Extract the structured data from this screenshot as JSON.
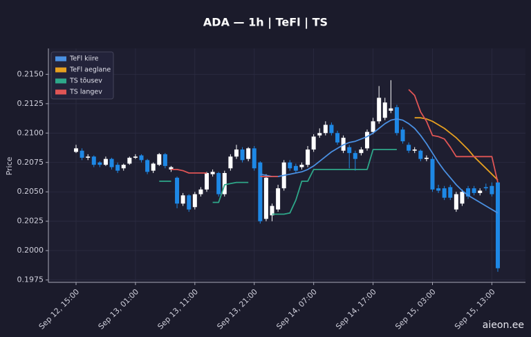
{
  "chart_data": {
    "type": "candlestick",
    "title": "ADA — 1h  |  TeFl  |  TS",
    "ylabel": "Price",
    "watermark": "aieon.ee",
    "x": [
      "Sep 12, 15:00",
      "Sep 12, 16:00",
      "Sep 12, 17:00",
      "Sep 12, 18:00",
      "Sep 12, 19:00",
      "Sep 12, 20:00",
      "Sep 12, 21:00",
      "Sep 12, 22:00",
      "Sep 12, 23:00",
      "Sep 13, 00:00",
      "Sep 13, 01:00",
      "Sep 13, 02:00",
      "Sep 13, 03:00",
      "Sep 13, 04:00",
      "Sep 13, 05:00",
      "Sep 13, 06:00",
      "Sep 13, 07:00",
      "Sep 13, 08:00",
      "Sep 13, 09:00",
      "Sep 13, 10:00",
      "Sep 13, 11:00",
      "Sep 13, 12:00",
      "Sep 13, 13:00",
      "Sep 13, 14:00",
      "Sep 13, 15:00",
      "Sep 13, 16:00",
      "Sep 13, 17:00",
      "Sep 13, 18:00",
      "Sep 13, 19:00",
      "Sep 13, 20:00",
      "Sep 13, 21:00",
      "Sep 13, 22:00",
      "Sep 13, 23:00",
      "Sep 14, 00:00",
      "Sep 14, 01:00",
      "Sep 14, 02:00",
      "Sep 14, 03:00",
      "Sep 14, 04:00",
      "Sep 14, 05:00",
      "Sep 14, 06:00",
      "Sep 14, 07:00",
      "Sep 14, 08:00",
      "Sep 14, 09:00",
      "Sep 14, 10:00",
      "Sep 14, 11:00",
      "Sep 14, 12:00",
      "Sep 14, 13:00",
      "Sep 14, 14:00",
      "Sep 14, 15:00",
      "Sep 14, 16:00",
      "Sep 14, 17:00",
      "Sep 14, 18:00",
      "Sep 14, 19:00",
      "Sep 14, 20:00",
      "Sep 14, 21:00",
      "Sep 14, 22:00",
      "Sep 14, 23:00",
      "Sep 15, 00:00",
      "Sep 15, 01:00",
      "Sep 15, 02:00",
      "Sep 15, 03:00",
      "Sep 15, 04:00",
      "Sep 15, 05:00",
      "Sep 15, 06:00",
      "Sep 15, 07:00",
      "Sep 15, 08:00",
      "Sep 15, 09:00",
      "Sep 15, 10:00",
      "Sep 15, 11:00",
      "Sep 15, 12:00",
      "Sep 15, 13:00",
      "Sep 15, 14:00"
    ],
    "open": [
      0.2084,
      0.2085,
      0.2079,
      0.208,
      0.2075,
      0.2073,
      0.2078,
      0.2073,
      0.207,
      0.2074,
      0.2079,
      0.2081,
      0.2077,
      0.2068,
      0.2073,
      0.2082,
      0.2069,
      0.2062,
      0.204,
      0.2047,
      0.2037,
      0.2048,
      0.2052,
      0.2065,
      0.2066,
      0.2048,
      0.207,
      0.208,
      0.2086,
      0.2078,
      0.2087,
      0.2075,
      0.2027,
      0.203,
      0.2035,
      0.2053,
      0.2075,
      0.2072,
      0.2071,
      0.2073,
      0.2086,
      0.2098,
      0.21,
      0.2107,
      0.21,
      0.2085,
      0.2088,
      0.2083,
      0.2083,
      0.2087,
      0.2101,
      0.211,
      0.2113,
      0.2119,
      0.2122,
      0.2103,
      0.209,
      0.2085,
      0.2085,
      0.2078,
      0.2078,
      0.2053,
      0.2053,
      0.2054,
      0.2035,
      0.204,
      0.2053,
      0.2053,
      0.2049,
      0.2054,
      0.2055,
      0.2058
    ],
    "high": [
      0.209,
      0.2087,
      0.2082,
      0.2081,
      0.2076,
      0.208,
      0.2079,
      0.2075,
      0.2074,
      0.208,
      0.2082,
      0.2082,
      0.2078,
      0.2075,
      0.2083,
      0.2083,
      0.2072,
      0.2063,
      0.2049,
      0.2048,
      0.205,
      0.2054,
      0.2067,
      0.2069,
      0.2067,
      0.2068,
      0.2082,
      0.209,
      0.2088,
      0.2088,
      0.2089,
      0.2076,
      0.2065,
      0.204,
      0.2056,
      0.2077,
      0.2077,
      0.2074,
      0.2075,
      0.2089,
      0.2099,
      0.2104,
      0.211,
      0.2109,
      0.2102,
      0.2098,
      0.209,
      0.2085,
      0.2088,
      0.2103,
      0.2113,
      0.214,
      0.213,
      0.2145,
      0.2124,
      0.2105,
      0.2092,
      0.2088,
      0.2086,
      0.2081,
      0.208,
      0.2056,
      0.2055,
      0.2056,
      0.205,
      0.2052,
      0.2055,
      0.2055,
      0.2053,
      0.2057,
      0.2058,
      0.2059
    ],
    "low": [
      0.2083,
      0.2077,
      0.2077,
      0.2071,
      0.2071,
      0.2072,
      0.2069,
      0.2066,
      0.2068,
      0.2073,
      0.2078,
      0.2075,
      0.2065,
      0.2066,
      0.2072,
      0.207,
      0.2067,
      0.2036,
      0.2038,
      0.2033,
      0.2035,
      0.2046,
      0.205,
      0.2063,
      0.2046,
      0.2046,
      0.2068,
      0.2078,
      0.2075,
      0.2076,
      0.2068,
      0.2023,
      0.2025,
      0.2025,
      0.2033,
      0.2051,
      0.2068,
      0.2066,
      0.2069,
      0.2071,
      0.2084,
      0.2096,
      0.2098,
      0.2098,
      0.209,
      0.2083,
      0.207,
      0.2068,
      0.2081,
      0.2085,
      0.2099,
      0.2108,
      0.2111,
      0.2117,
      0.2098,
      0.2091,
      0.2083,
      0.2083,
      0.2076,
      0.2076,
      0.205,
      0.2049,
      0.2043,
      0.2043,
      0.2033,
      0.2038,
      0.2044,
      0.2047,
      0.2047,
      0.2051,
      0.2046,
      0.1982
    ],
    "close": [
      0.2087,
      0.2079,
      0.208,
      0.2073,
      0.2073,
      0.2078,
      0.2071,
      0.2068,
      0.2073,
      0.2079,
      0.208,
      0.2077,
      0.2067,
      0.2074,
      0.2082,
      0.2072,
      0.2071,
      0.204,
      0.2047,
      0.2035,
      0.2048,
      0.2052,
      0.2066,
      0.2067,
      0.2048,
      0.2066,
      0.208,
      0.2086,
      0.2077,
      0.2087,
      0.207,
      0.2025,
      0.2062,
      0.2038,
      0.2053,
      0.2075,
      0.207,
      0.2068,
      0.2073,
      0.2086,
      0.2097,
      0.21,
      0.2107,
      0.21,
      0.2092,
      0.2096,
      0.2083,
      0.2078,
      0.2086,
      0.2101,
      0.211,
      0.213,
      0.2126,
      0.2121,
      0.21,
      0.2093,
      0.2085,
      0.2086,
      0.2078,
      0.2079,
      0.2052,
      0.2051,
      0.2045,
      0.2045,
      0.2048,
      0.205,
      0.2046,
      0.2049,
      0.2051,
      0.2053,
      0.2048,
      0.1985
    ],
    "up_color": "#ffffff",
    "down_color": "#1e88e5",
    "series": [
      {
        "name": "TeFl kiire",
        "color": "#4a90e2",
        "values": [
          null,
          null,
          null,
          null,
          null,
          null,
          null,
          null,
          null,
          null,
          null,
          null,
          null,
          null,
          null,
          null,
          null,
          null,
          null,
          null,
          null,
          null,
          null,
          null,
          null,
          null,
          null,
          null,
          null,
          null,
          null,
          0.2065,
          0.2064,
          0.2063,
          0.2063,
          0.2064,
          0.2065,
          0.2066,
          0.2067,
          0.2069,
          0.2072,
          0.2076,
          0.208,
          0.2084,
          0.2087,
          0.209,
          0.2092,
          0.2093,
          0.2095,
          0.2097,
          0.21,
          0.2104,
          0.2108,
          0.2111,
          0.2112,
          0.2111,
          0.2108,
          0.2104,
          0.2098,
          0.2091,
          0.2083,
          0.2075,
          0.2068,
          0.2062,
          0.2056,
          0.2051,
          0.2047,
          0.2044,
          0.2041,
          0.2038,
          0.2035,
          0.2032
        ]
      },
      {
        "name": "TeFl aeglane",
        "color": "#e6a020",
        "values": [
          null,
          null,
          null,
          null,
          null,
          null,
          null,
          null,
          null,
          null,
          null,
          null,
          null,
          null,
          null,
          null,
          null,
          null,
          null,
          null,
          null,
          null,
          null,
          null,
          null,
          null,
          null,
          null,
          null,
          null,
          null,
          null,
          null,
          null,
          null,
          null,
          null,
          null,
          null,
          null,
          null,
          null,
          null,
          null,
          null,
          null,
          null,
          null,
          null,
          null,
          null,
          null,
          null,
          null,
          null,
          null,
          null,
          0.2113,
          0.2113,
          0.2112,
          0.211,
          0.2107,
          0.2104,
          0.21,
          0.2096,
          0.2091,
          0.2086,
          0.208,
          0.2075,
          0.207,
          0.2065,
          0.206
        ]
      },
      {
        "name": "TS tõusev",
        "color": "#2ea88a",
        "values": [
          null,
          null,
          null,
          null,
          null,
          null,
          null,
          null,
          null,
          null,
          null,
          null,
          null,
          null,
          0.2059,
          0.2059,
          0.2059,
          null,
          null,
          null,
          null,
          null,
          null,
          0.2041,
          0.2041,
          0.2056,
          0.2057,
          0.2058,
          0.2058,
          0.2058,
          null,
          null,
          null,
          0.2031,
          0.2031,
          0.2031,
          0.2032,
          0.2043,
          0.2059,
          0.2059,
          0.2069,
          0.2069,
          0.2069,
          0.2069,
          0.2069,
          0.2069,
          0.2069,
          0.2069,
          0.2069,
          0.2069,
          0.2086,
          0.2086,
          0.2086,
          0.2086,
          0.2086,
          null,
          null,
          null,
          null,
          null,
          null,
          null,
          null,
          null,
          null,
          null,
          null,
          null,
          null,
          null,
          null,
          null
        ]
      },
      {
        "name": "TS langev",
        "color": "#e05555",
        "values": [
          null,
          null,
          null,
          null,
          null,
          null,
          null,
          null,
          null,
          null,
          null,
          null,
          null,
          null,
          null,
          null,
          0.2069,
          0.2069,
          0.2068,
          0.2066,
          0.2066,
          0.2066,
          0.2066,
          null,
          null,
          null,
          null,
          null,
          null,
          null,
          null,
          0.2063,
          0.2063,
          0.2063,
          0.2063,
          null,
          null,
          null,
          null,
          null,
          null,
          null,
          null,
          null,
          null,
          null,
          null,
          null,
          null,
          null,
          null,
          null,
          null,
          null,
          null,
          null,
          0.2137,
          0.2132,
          0.2118,
          0.211,
          0.2098,
          0.2097,
          0.2095,
          0.2088,
          0.208,
          0.208,
          0.208,
          0.208,
          0.208,
          0.208,
          0.208,
          0.2058
        ]
      }
    ],
    "ylim": [
      0.1973,
      0.2172
    ],
    "yticks": [
      0.1975,
      {
        "value": 0.2,
        "label": "0.2000"
      },
      0.2025,
      {
        "value": 0.205,
        "label": "0.2050"
      },
      0.2075,
      {
        "value": 0.21,
        "label": "0.2100"
      },
      0.2125,
      {
        "value": 0.215,
        "label": "0.2150"
      }
    ],
    "xticks": [
      "Sep 12, 15:00",
      "Sep 13, 01:00",
      "Sep 13, 11:00",
      "Sep 13, 21:00",
      "Sep 14, 07:00",
      "Sep 14, 17:00",
      "Sep 15, 03:00",
      "Sep 15, 13:00"
    ],
    "grid": true,
    "legend": "upper left"
  }
}
